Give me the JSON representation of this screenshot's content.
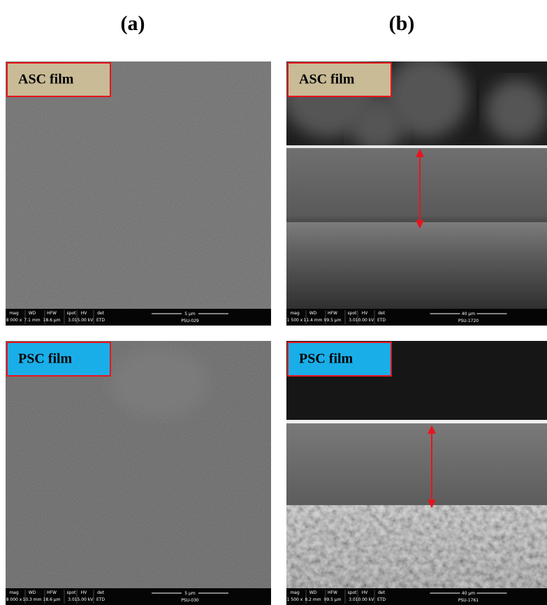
{
  "headings": [
    "(a)",
    "(b)"
  ],
  "info_headers": [
    "mag",
    "WD",
    "HFW",
    "spot",
    "HV",
    "det"
  ],
  "panels": [
    {
      "label": "ASC film",
      "info": [
        "8 000 x",
        "7.1 mm",
        "18.6 µm",
        "3.0",
        "15.00 kV",
        "ETD"
      ],
      "scale": "5 µm",
      "id": "PSU-029"
    },
    {
      "label": "ASC film",
      "info": [
        "1 500 x",
        "11.4 mm",
        "99.5 µm",
        "3.0",
        "10.00 kV",
        "ETD"
      ],
      "scale": "40 µm",
      "id": "PSU-1720"
    },
    {
      "label": "PSC film",
      "info": [
        "8 000 x",
        "10.3 mm",
        "18.6 µm",
        "3.0",
        "15.00 kV",
        "ETD"
      ],
      "scale": "5 µm",
      "id": "PSU-030"
    },
    {
      "label": "PSC film",
      "info": [
        "1 500 x",
        "8.2 mm",
        "99.5 µm",
        "3.0",
        "10.00 kV",
        "ETD"
      ],
      "scale": "40 µm",
      "id": "PSU-1761"
    }
  ]
}
